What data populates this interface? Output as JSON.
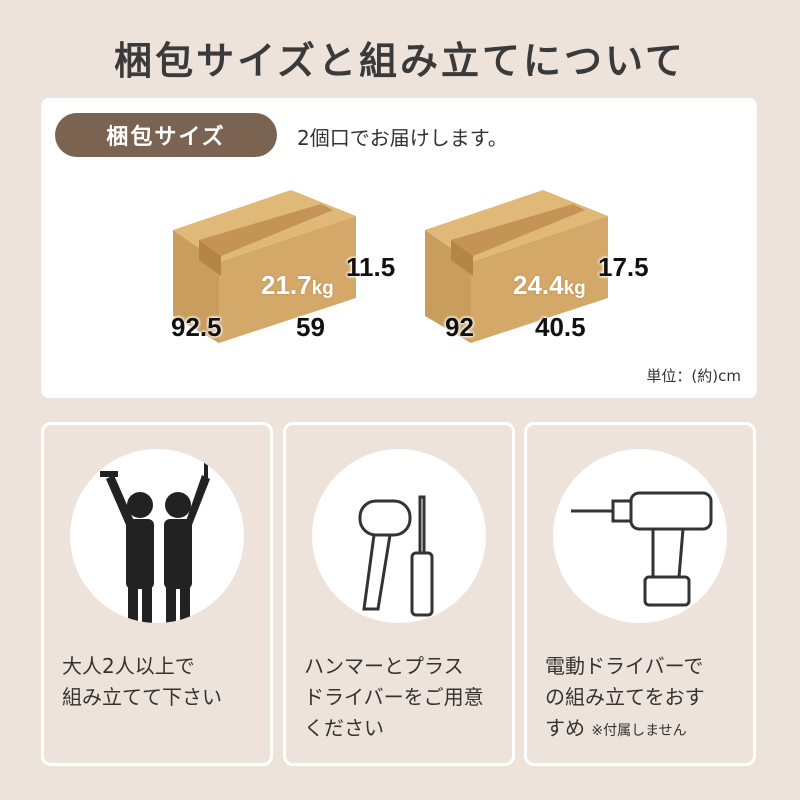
{
  "title": "梱包サイズと組み立てについて",
  "packaging": {
    "label": "梱包サイズ",
    "note": "2個口でお届けします。",
    "unit": "単位：(約)cm",
    "boxes": [
      {
        "weight": "21.7",
        "weight_unit": "kg",
        "length": "92.5",
        "width": "59",
        "height": "11.5"
      },
      {
        "weight": "24.4",
        "weight_unit": "kg",
        "length": "92",
        "width": "40.5",
        "height": "17.5"
      }
    ]
  },
  "assembly": [
    {
      "icon": "two-people-icon",
      "lines": [
        "大人2人以上で",
        "組み立てて下さい"
      ]
    },
    {
      "icon": "hammer-screwdriver-icon",
      "lines": [
        "ハンマーとプラス",
        "ドライバーをご用意",
        "ください"
      ]
    },
    {
      "icon": "electric-drill-icon",
      "lines": [
        "電動ドライバーで",
        "の組み立てをおす",
        "すめ"
      ],
      "note": "※付属しません"
    }
  ],
  "colors": {
    "background": "#ede3db",
    "pill": "#7b6352",
    "box": "#d4a868"
  }
}
